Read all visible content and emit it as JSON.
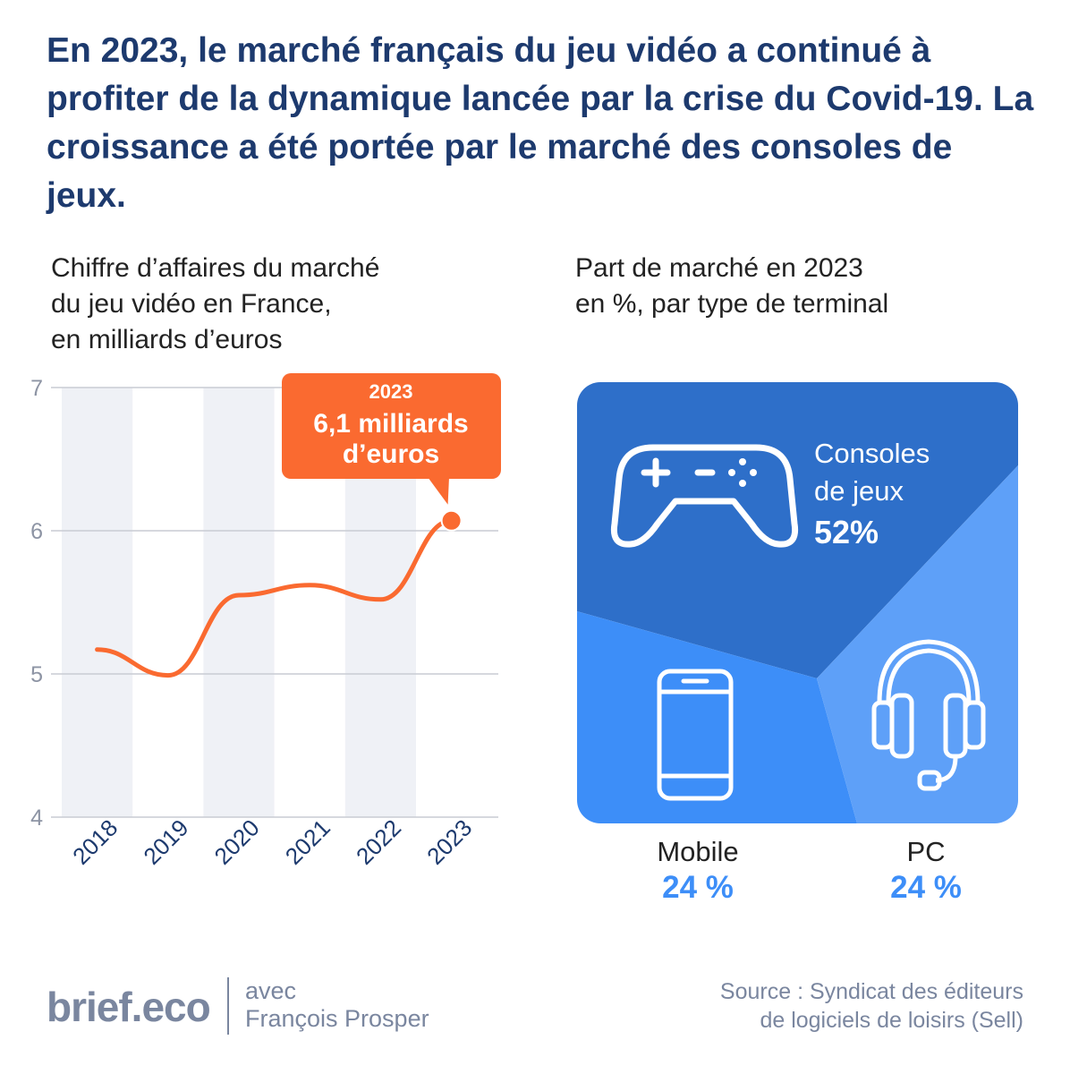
{
  "headline": "En 2023, le marché français du jeu vidéo a continué à profiter de la dynamique lancée par la crise du Covid-19. La croissance a été portée par le marché des consoles de jeux.",
  "line_title": [
    "Chiffre d’affaires du marché",
    "du jeu vidéo en France,",
    "en milliards d’euros"
  ],
  "pie_title": [
    "Part de marché en 2023",
    "en %, par type de terminal"
  ],
  "chart_data": [
    {
      "type": "line",
      "x": [
        "2018",
        "2019",
        "2020",
        "2021",
        "2022",
        "2023"
      ],
      "series": [
        {
          "values": [
            5.17,
            4.99,
            5.55,
            5.62,
            5.52,
            6.07
          ]
        }
      ],
      "ylim": [
        4,
        7
      ],
      "yticks": [
        "4",
        "5",
        "6",
        "7"
      ],
      "grid": true,
      "color": "#fa6a30",
      "band_color": "#eff1f6",
      "grid_color": "#c9ccd3",
      "callout": {
        "year": "2023",
        "text": [
          "6,1 milliards",
          "d’euros"
        ]
      }
    },
    {
      "type": "pie",
      "labels": [
        "Consoles de jeux",
        "Mobile",
        "PC"
      ],
      "values": [
        52,
        24,
        24
      ],
      "value_labels": [
        "52%",
        "24 %",
        "24 %"
      ],
      "colors": [
        "#2e6fc9",
        "#3d8ef8",
        "#5ea0f8"
      ],
      "icons": [
        "gamepad-icon",
        "smartphone-icon",
        "headset-icon"
      ]
    }
  ],
  "footer": {
    "brand": "brief.eco",
    "with": [
      "avec",
      "François Prosper"
    ],
    "source": [
      "Source : Syndicat des éditeurs",
      "de logiciels de loisirs (Sell)"
    ]
  }
}
